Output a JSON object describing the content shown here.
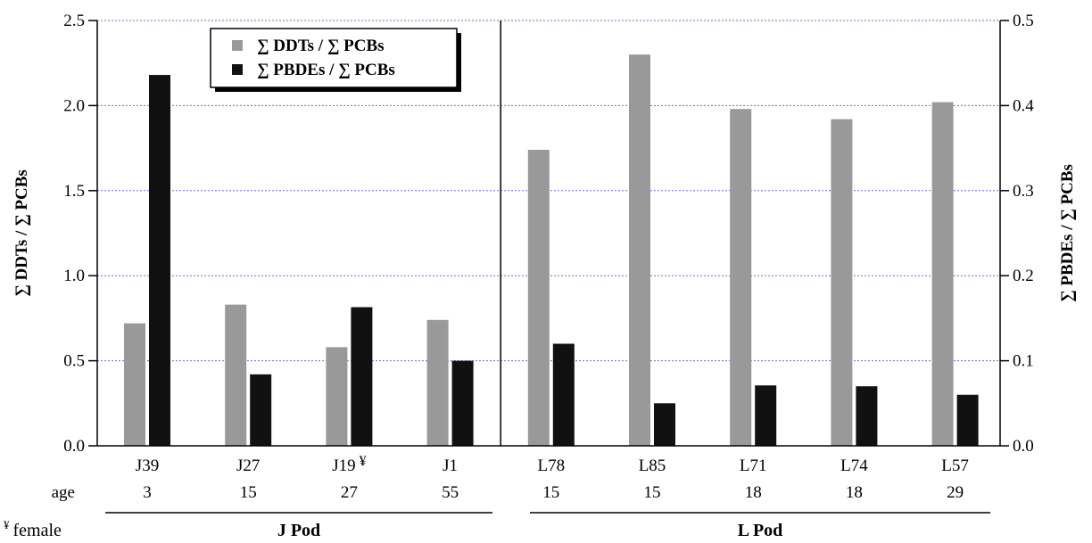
{
  "chart_data": {
    "type": "bar",
    "categories": [
      "J39",
      "J27",
      "J19",
      "J1",
      "L78",
      "L85",
      "L71",
      "L74",
      "L57"
    ],
    "category_marks": [
      "",
      "",
      "¥",
      "",
      "",
      "",
      "",
      "",
      ""
    ],
    "ages": [
      "3",
      "15",
      "27",
      "55",
      "15",
      "15",
      "18",
      "18",
      "29"
    ],
    "age_label": "age",
    "groups": [
      {
        "name": "J Pod",
        "categories": [
          "J39",
          "J27",
          "J19",
          "J1"
        ]
      },
      {
        "name": "L Pod",
        "categories": [
          "L78",
          "L85",
          "L71",
          "L74",
          "L57"
        ]
      }
    ],
    "footnote": "¥ female",
    "series": [
      {
        "name": "∑ DDTs / ∑ PCBs",
        "axis": "left",
        "color": "#999999",
        "values": [
          0.72,
          0.83,
          0.58,
          0.74,
          1.74,
          2.3,
          1.98,
          1.92,
          2.02
        ]
      },
      {
        "name": "∑ PBDEs / ∑ PCBs",
        "axis": "right",
        "color": "#111111",
        "values": [
          0.436,
          0.084,
          0.163,
          0.1,
          0.12,
          0.05,
          0.071,
          0.07,
          0.06
        ]
      }
    ],
    "ylabel": "∑ DDTs / ∑ PCBs",
    "y2label": "∑ PBDEs / ∑ PCBs",
    "ylim": [
      0,
      2.5
    ],
    "y2lim": [
      0,
      0.5
    ],
    "yticks": [
      "0.0",
      "0.5",
      "1.0",
      "1.5",
      "2.0",
      "2.5"
    ],
    "y2ticks": [
      "0.0",
      "0.1",
      "0.2",
      "0.3",
      "0.4",
      "0.5"
    ],
    "grid": true,
    "grid_color": "#6b6bd6",
    "legend_position": "top-left"
  }
}
